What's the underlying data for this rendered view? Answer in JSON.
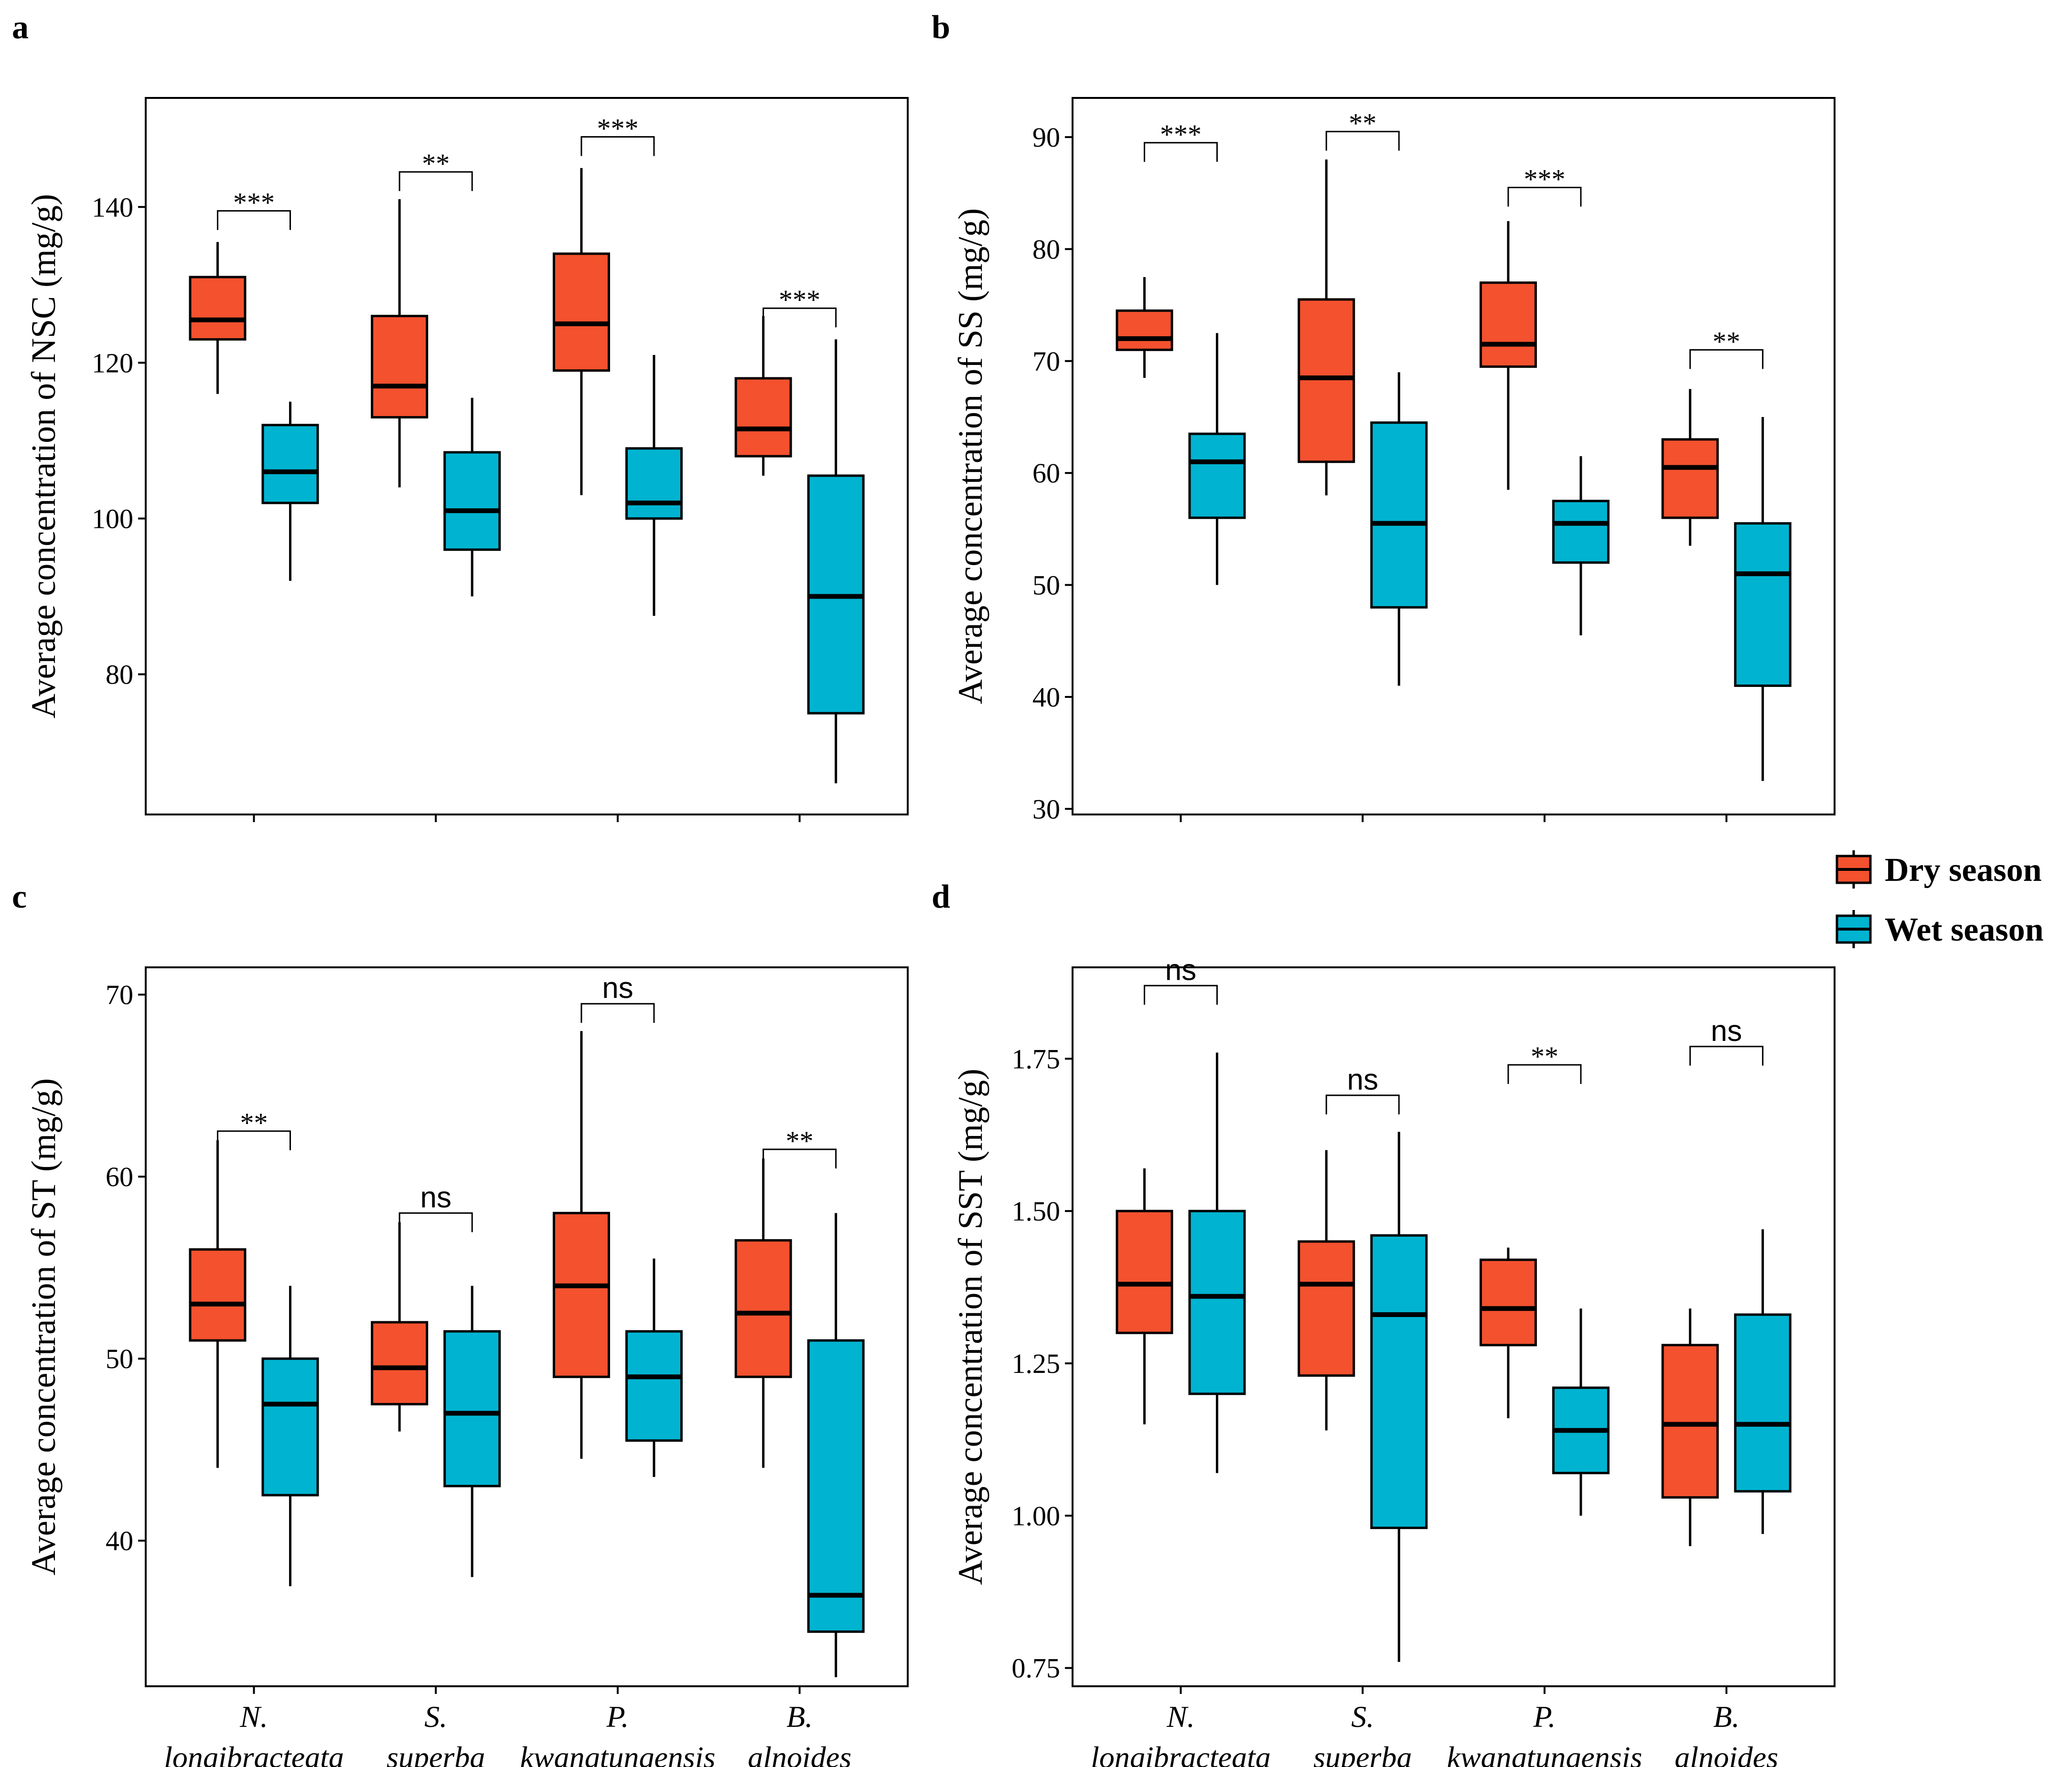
{
  "colors": {
    "dry": "#F4512E",
    "wet": "#00B4D1",
    "stroke": "#000000"
  },
  "categories": [
    {
      "line1": "N.",
      "line2": "longibracteata"
    },
    {
      "line1": "S.",
      "line2": "superba"
    },
    {
      "line1": "P.",
      "line2": "kwangtungensis"
    },
    {
      "line1": "B.",
      "line2": "alnoides"
    }
  ],
  "legend": {
    "items": [
      {
        "label": "Dry season",
        "key": "dry"
      },
      {
        "label": "Wet season",
        "key": "wet"
      }
    ]
  },
  "chart_data": [
    {
      "panel": "a",
      "type": "box",
      "ylabel": "Average concentration of NSC (mg/g)",
      "ylim": [
        62,
        154
      ],
      "yticks": [
        80,
        100,
        120,
        140
      ],
      "ytick_labels": [
        "80",
        "100",
        "120",
        "140"
      ],
      "show_x_labels": false,
      "series": [
        {
          "name": "Dry season",
          "key": "dry",
          "boxes": [
            {
              "min": 116,
              "q1": 123,
              "median": 125.5,
              "q3": 131,
              "max": 135.5
            },
            {
              "min": 104,
              "q1": 113,
              "median": 117,
              "q3": 126,
              "max": 141
            },
            {
              "min": 103,
              "q1": 119,
              "median": 125,
              "q3": 134,
              "max": 145
            },
            {
              "min": 105.5,
              "q1": 108,
              "median": 111.5,
              "q3": 118,
              "max": 126
            }
          ]
        },
        {
          "name": "Wet season",
          "key": "wet",
          "boxes": [
            {
              "min": 92,
              "q1": 102,
              "median": 106,
              "q3": 112,
              "max": 115
            },
            {
              "min": 90,
              "q1": 96,
              "median": 101,
              "q3": 108.5,
              "max": 115.5
            },
            {
              "min": 87.5,
              "q1": 100,
              "median": 102,
              "q3": 109,
              "max": 121
            },
            {
              "min": 66,
              "q1": 75,
              "median": 90,
              "q3": 105.5,
              "max": 123
            }
          ]
        }
      ],
      "significance": [
        {
          "label": "***",
          "y": 139.5
        },
        {
          "label": "**",
          "y": 144.5
        },
        {
          "label": "***",
          "y": 149
        },
        {
          "label": "***",
          "y": 127
        }
      ]
    },
    {
      "panel": "b",
      "type": "box",
      "ylabel": "Average concentration of SS (mg/g)",
      "ylim": [
        29.5,
        93.5
      ],
      "yticks": [
        30,
        40,
        50,
        60,
        70,
        80,
        90
      ],
      "ytick_labels": [
        "30",
        "40",
        "50",
        "60",
        "70",
        "80",
        "90"
      ],
      "show_x_labels": false,
      "series": [
        {
          "name": "Dry season",
          "key": "dry",
          "boxes": [
            {
              "min": 68.5,
              "q1": 71,
              "median": 72,
              "q3": 74.5,
              "max": 77.5
            },
            {
              "min": 58,
              "q1": 61,
              "median": 68.5,
              "q3": 75.5,
              "max": 88
            },
            {
              "min": 58.5,
              "q1": 69.5,
              "median": 71.5,
              "q3": 77,
              "max": 82.5
            },
            {
              "min": 53.5,
              "q1": 56,
              "median": 60.5,
              "q3": 63,
              "max": 67.5
            }
          ]
        },
        {
          "name": "Wet season",
          "key": "wet",
          "boxes": [
            {
              "min": 50,
              "q1": 56,
              "median": 61,
              "q3": 63.5,
              "max": 72.5
            },
            {
              "min": 41,
              "q1": 48,
              "median": 55.5,
              "q3": 64.5,
              "max": 69
            },
            {
              "min": 45.5,
              "q1": 52,
              "median": 55.5,
              "q3": 57.5,
              "max": 61.5
            },
            {
              "min": 32.5,
              "q1": 41,
              "median": 51,
              "q3": 55.5,
              "max": 65
            }
          ]
        }
      ],
      "significance": [
        {
          "label": "***",
          "y": 89.5
        },
        {
          "label": "**",
          "y": 90.5
        },
        {
          "label": "***",
          "y": 85.5
        },
        {
          "label": "**",
          "y": 71
        }
      ]
    },
    {
      "panel": "c",
      "type": "box",
      "ylabel": "Average concentration of ST (mg/g)",
      "ylim": [
        32,
        71.5
      ],
      "yticks": [
        40,
        50,
        60,
        70
      ],
      "ytick_labels": [
        "40",
        "50",
        "60",
        "70"
      ],
      "show_x_labels": true,
      "series": [
        {
          "name": "Dry season",
          "key": "dry",
          "boxes": [
            {
              "min": 44,
              "q1": 51,
              "median": 53,
              "q3": 56,
              "max": 62
            },
            {
              "min": 46,
              "q1": 47.5,
              "median": 49.5,
              "q3": 52,
              "max": 57.5
            },
            {
              "min": 44.5,
              "q1": 49,
              "median": 54,
              "q3": 58,
              "max": 68
            },
            {
              "min": 44,
              "q1": 49,
              "median": 52.5,
              "q3": 56.5,
              "max": 61
            }
          ]
        },
        {
          "name": "Wet season",
          "key": "wet",
          "boxes": [
            {
              "min": 37.5,
              "q1": 42.5,
              "median": 47.5,
              "q3": 50,
              "max": 54
            },
            {
              "min": 38,
              "q1": 43,
              "median": 47,
              "q3": 51.5,
              "max": 54
            },
            {
              "min": 43.5,
              "q1": 45.5,
              "median": 49,
              "q3": 51.5,
              "max": 55.5
            },
            {
              "min": 32.5,
              "q1": 35,
              "median": 37,
              "q3": 51,
              "max": 58
            }
          ]
        }
      ],
      "significance": [
        {
          "label": "**",
          "y": 62.5
        },
        {
          "label": "ns",
          "y": 58
        },
        {
          "label": "ns",
          "y": 69.5
        },
        {
          "label": "**",
          "y": 61.5
        }
      ]
    },
    {
      "panel": "d",
      "type": "box",
      "ylabel": "Average concentration of SST (mg/g)",
      "ylim": [
        0.72,
        1.9
      ],
      "yticks": [
        0.75,
        1.0,
        1.25,
        1.5,
        1.75
      ],
      "ytick_labels": [
        "0.75",
        "1.00",
        "1.25",
        "1.50",
        "1.75"
      ],
      "show_x_labels": true,
      "series": [
        {
          "name": "Dry season",
          "key": "dry",
          "boxes": [
            {
              "min": 1.15,
              "q1": 1.3,
              "median": 1.38,
              "q3": 1.5,
              "max": 1.57
            },
            {
              "min": 1.14,
              "q1": 1.23,
              "median": 1.38,
              "q3": 1.45,
              "max": 1.6
            },
            {
              "min": 1.16,
              "q1": 1.28,
              "median": 1.34,
              "q3": 1.42,
              "max": 1.44
            },
            {
              "min": 0.95,
              "q1": 1.03,
              "median": 1.15,
              "q3": 1.28,
              "max": 1.34
            }
          ]
        },
        {
          "name": "Wet season",
          "key": "wet",
          "boxes": [
            {
              "min": 1.07,
              "q1": 1.2,
              "median": 1.36,
              "q3": 1.5,
              "max": 1.76
            },
            {
              "min": 0.76,
              "q1": 0.98,
              "median": 1.33,
              "q3": 1.46,
              "max": 1.63
            },
            {
              "min": 1.0,
              "q1": 1.07,
              "median": 1.14,
              "q3": 1.21,
              "max": 1.34
            },
            {
              "min": 0.97,
              "q1": 1.04,
              "median": 1.15,
              "q3": 1.33,
              "max": 1.47
            }
          ]
        }
      ],
      "significance": [
        {
          "label": "ns",
          "y": 1.87
        },
        {
          "label": "ns",
          "y": 1.69
        },
        {
          "label": "**",
          "y": 1.74
        },
        {
          "label": "ns",
          "y": 1.77
        }
      ]
    }
  ]
}
